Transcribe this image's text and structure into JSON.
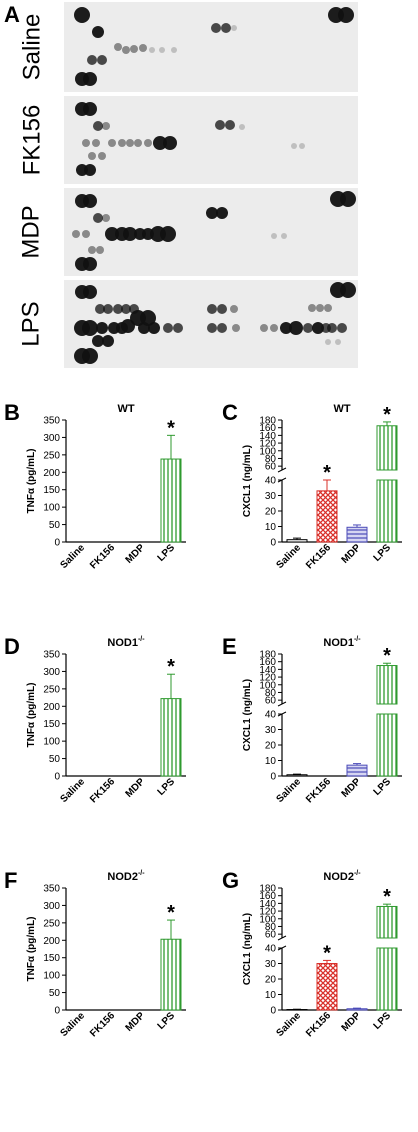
{
  "figure": {
    "panel_a_label": "A",
    "blot_labels": [
      "Saline",
      "FK156",
      "MDP",
      "LPS"
    ],
    "star": "*"
  },
  "colors": {
    "saline": "#000000",
    "fk156": "#d9302a",
    "mdp": "#4b4bb8",
    "lps": "#2f9a2f",
    "blot_background": "#ececec"
  },
  "chart_data": [
    {
      "panel": "B",
      "type": "bar",
      "title": "WT",
      "categories": [
        "Saline",
        "FK156",
        "MDP",
        "LPS"
      ],
      "ylabel": "TNFα (pg/mL)",
      "values": [
        0,
        0,
        0,
        238
      ],
      "errors": [
        0,
        0,
        0,
        68
      ],
      "ylim": [
        0,
        350
      ],
      "yticks": [
        0,
        50,
        100,
        150,
        200,
        250,
        300,
        350
      ],
      "significant": [
        false,
        false,
        false,
        true
      ]
    },
    {
      "panel": "C",
      "type": "bar",
      "title": "WT",
      "categories": [
        "Saline",
        "FK156",
        "MDP",
        "LPS"
      ],
      "ylabel": "CXCL1 (ng/mL)",
      "values": [
        1.5,
        33,
        9.5,
        165
      ],
      "errors": [
        1,
        7,
        1.5,
        10
      ],
      "split_axis": {
        "lower": [
          0,
          40
        ],
        "upper": [
          50,
          180
        ]
      },
      "yticks_lower": [
        0,
        10,
        20,
        30,
        40
      ],
      "yticks_upper": [
        60,
        80,
        100,
        120,
        140,
        160,
        180
      ],
      "significant": [
        false,
        true,
        false,
        true
      ]
    },
    {
      "panel": "D",
      "type": "bar",
      "title": "NOD1",
      "title_superscript": "-/-",
      "categories": [
        "Saline",
        "FK156",
        "MDP",
        "LPS"
      ],
      "ylabel": "TNFα (pg/mL)",
      "values": [
        0,
        0,
        0,
        222
      ],
      "errors": [
        0,
        0,
        0,
        70
      ],
      "ylim": [
        0,
        350
      ],
      "yticks": [
        0,
        50,
        100,
        150,
        200,
        250,
        300,
        350
      ],
      "significant": [
        false,
        false,
        false,
        true
      ]
    },
    {
      "panel": "E",
      "type": "bar",
      "title": "NOD1",
      "title_superscript": "-/-",
      "categories": [
        "Saline",
        "FK156",
        "MDP",
        "LPS"
      ],
      "ylabel": "CXCL1 (ng/mL)",
      "values": [
        0.8,
        0,
        7,
        150
      ],
      "errors": [
        0.4,
        0,
        1,
        6
      ],
      "split_axis": {
        "lower": [
          0,
          40
        ],
        "upper": [
          50,
          180
        ]
      },
      "yticks_lower": [
        0,
        10,
        20,
        30,
        40
      ],
      "yticks_upper": [
        60,
        80,
        100,
        120,
        140,
        160,
        180
      ],
      "significant": [
        false,
        false,
        false,
        true
      ]
    },
    {
      "panel": "F",
      "type": "bar",
      "title": "NOD2",
      "title_superscript": "-/-",
      "categories": [
        "Saline",
        "FK156",
        "MDP",
        "LPS"
      ],
      "ylabel": "TNFα (pg/mL)",
      "values": [
        0,
        0,
        0,
        203
      ],
      "errors": [
        0,
        0,
        0,
        55
      ],
      "ylim": [
        0,
        350
      ],
      "yticks": [
        0,
        50,
        100,
        150,
        200,
        250,
        300,
        350
      ],
      "significant": [
        false,
        false,
        false,
        true
      ]
    },
    {
      "panel": "G",
      "type": "bar",
      "title": "NOD2",
      "title_superscript": "-/-",
      "categories": [
        "Saline",
        "FK156",
        "MDP",
        "LPS"
      ],
      "ylabel": "CXCL1 (ng/mL)",
      "values": [
        0.3,
        30,
        0.8,
        132
      ],
      "errors": [
        0.2,
        2,
        0.4,
        6
      ],
      "split_axis": {
        "lower": [
          0,
          40
        ],
        "upper": [
          50,
          180
        ]
      },
      "yticks_lower": [
        0,
        10,
        20,
        30,
        40
      ],
      "yticks_upper": [
        60,
        80,
        100,
        120,
        140,
        160,
        180
      ],
      "significant": [
        false,
        true,
        false,
        true
      ]
    }
  ]
}
